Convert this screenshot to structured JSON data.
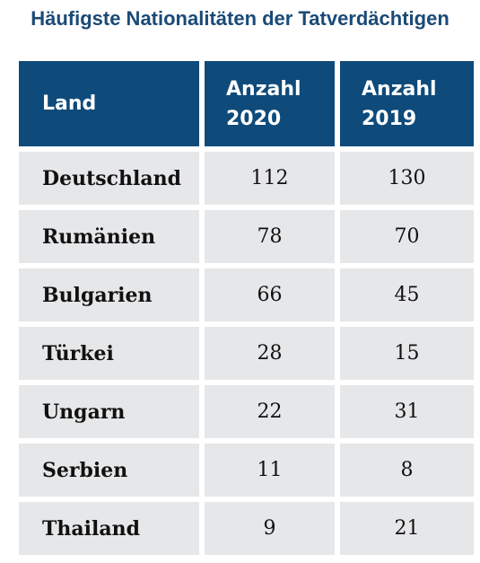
{
  "title": "Häufigste Nationalitäten der Tatverdächtigen",
  "table": {
    "headers": [
      {
        "line1": "Land",
        "line2": ""
      },
      {
        "line1": "Anzahl",
        "line2": "2020"
      },
      {
        "line1": "Anzahl",
        "line2": "2019"
      }
    ],
    "rows": [
      {
        "land": "Deutschland",
        "y2020": "112",
        "y2019": "130"
      },
      {
        "land": "Rumänien",
        "y2020": "78",
        "y2019": "70"
      },
      {
        "land": "Bulgarien",
        "y2020": "66",
        "y2019": "45"
      },
      {
        "land": "Türkei",
        "y2020": "28",
        "y2019": "15"
      },
      {
        "land": "Ungarn",
        "y2020": "22",
        "y2019": "31"
      },
      {
        "land": "Serbien",
        "y2020": "11",
        "y2019": "8"
      },
      {
        "land": "Thailand",
        "y2020": "9",
        "y2019": "21"
      }
    ]
  },
  "colors": {
    "title": "#1b4a76",
    "header_bg": "#0e4a7a",
    "row_bg": "#e6e7e9"
  }
}
